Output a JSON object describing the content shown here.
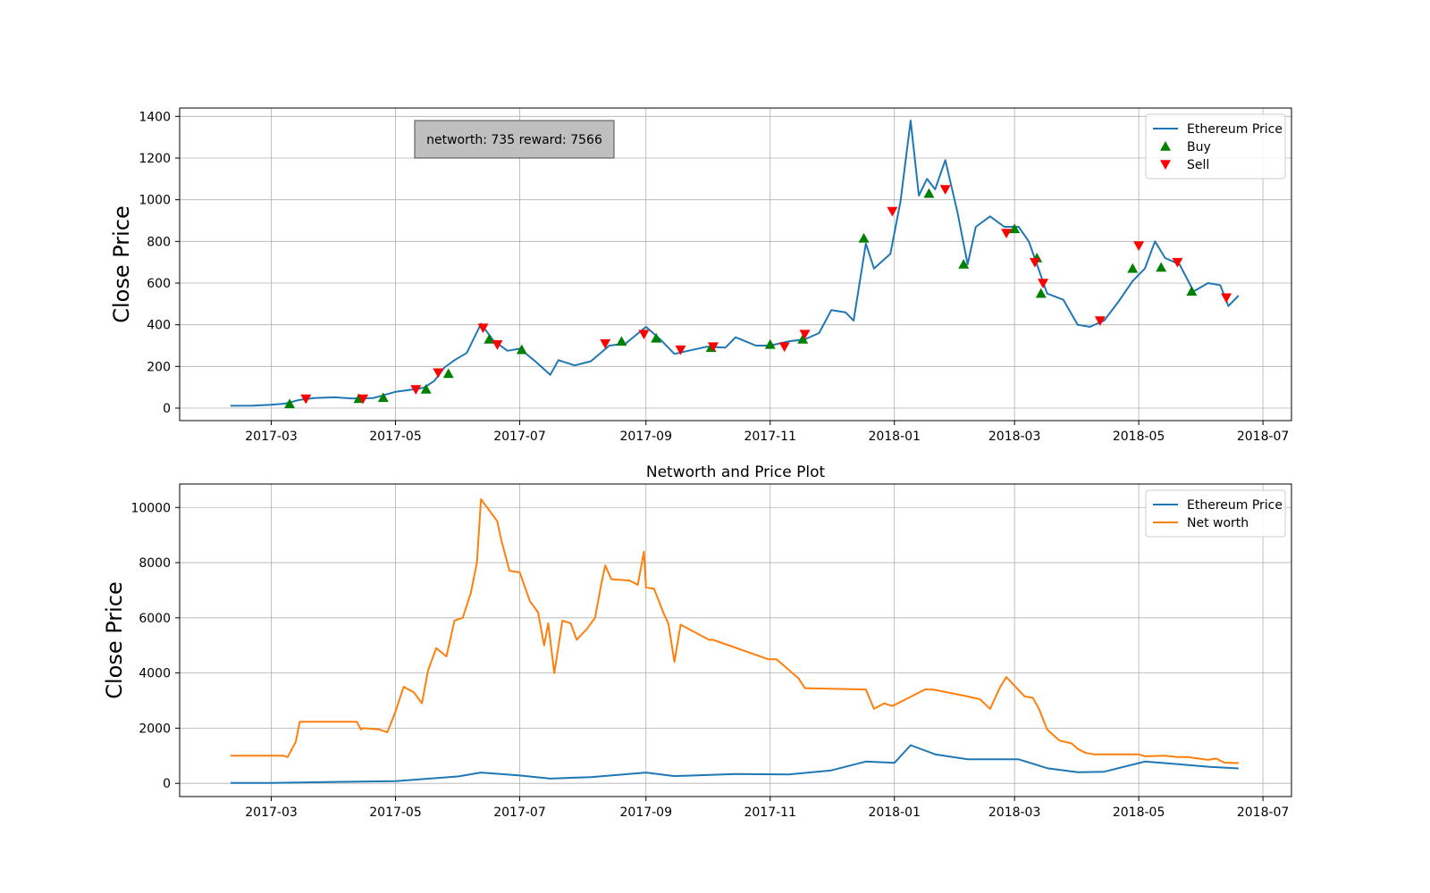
{
  "colors": {
    "price": "#1f77b4",
    "networth": "#ff7f0e",
    "buy": "#008000",
    "sell": "#ff0000",
    "grid": "#b0b0b0",
    "annotation_bg": "#bfbfbf"
  },
  "chart_data": [
    {
      "type": "line",
      "title": "",
      "xlabel": "",
      "ylabel": "Close Price",
      "xlim": [
        "2017-01-15",
        "2018-07-15"
      ],
      "ylim": [
        -60,
        1440
      ],
      "x_ticks": [
        "2017-03",
        "2017-05",
        "2017-07",
        "2017-09",
        "2017-11",
        "2018-01",
        "2018-03",
        "2018-05",
        "2018-07"
      ],
      "y_ticks": [
        "0",
        "200",
        "400",
        "600",
        "800",
        "1000",
        "1200",
        "1400"
      ],
      "grid": true,
      "legend_position": "top-right",
      "annotation": "networth: 735 reward: 7566",
      "legend": [
        {
          "label": "Ethereum Price",
          "kind": "line"
        },
        {
          "label": "Buy",
          "kind": "triangle-up"
        },
        {
          "label": "Sell",
          "kind": "triangle-down"
        }
      ],
      "series": [
        {
          "name": "Ethereum Price",
          "x": [
            "2017-02-09",
            "2017-02-20",
            "2017-03-01",
            "2017-03-08",
            "2017-03-15",
            "2017-03-22",
            "2017-04-01",
            "2017-04-10",
            "2017-04-20",
            "2017-05-01",
            "2017-05-10",
            "2017-05-15",
            "2017-05-20",
            "2017-05-25",
            "2017-05-30",
            "2017-06-05",
            "2017-06-12",
            "2017-06-18",
            "2017-06-25",
            "2017-07-01",
            "2017-07-08",
            "2017-07-16",
            "2017-07-20",
            "2017-07-28",
            "2017-08-05",
            "2017-08-14",
            "2017-08-22",
            "2017-09-01",
            "2017-09-08",
            "2017-09-15",
            "2017-09-24",
            "2017-10-01",
            "2017-10-10",
            "2017-10-15",
            "2017-10-25",
            "2017-11-01",
            "2017-11-10",
            "2017-11-18",
            "2017-11-25",
            "2017-12-01",
            "2017-12-08",
            "2017-12-12",
            "2017-12-18",
            "2017-12-22",
            "2017-12-30",
            "2018-01-04",
            "2018-01-09",
            "2018-01-13",
            "2018-01-17",
            "2018-01-21",
            "2018-01-26",
            "2018-02-01",
            "2018-02-06",
            "2018-02-10",
            "2018-02-17",
            "2018-02-24",
            "2018-03-03",
            "2018-03-08",
            "2018-03-12",
            "2018-03-17",
            "2018-03-25",
            "2018-04-01",
            "2018-04-07",
            "2018-04-14",
            "2018-04-21",
            "2018-04-28",
            "2018-05-04",
            "2018-05-09",
            "2018-05-14",
            "2018-05-21",
            "2018-05-28",
            "2018-06-04",
            "2018-06-10",
            "2018-06-14",
            "2018-06-19"
          ],
          "values": [
            11,
            12,
            16,
            22,
            40,
            48,
            52,
            46,
            48,
            78,
            90,
            98,
            130,
            195,
            230,
            265,
            405,
            325,
            275,
            285,
            230,
            160,
            230,
            205,
            225,
            300,
            310,
            390,
            330,
            260,
            280,
            295,
            290,
            340,
            300,
            300,
            320,
            330,
            360,
            470,
            460,
            420,
            790,
            670,
            740,
            990,
            1380,
            1020,
            1100,
            1050,
            1190,
            940,
            690,
            870,
            920,
            870,
            870,
            800,
            690,
            550,
            520,
            400,
            390,
            420,
            510,
            610,
            670,
            800,
            720,
            690,
            560,
            600,
            590,
            490,
            540
          ]
        }
      ],
      "buy_signals": {
        "x": [
          "2017-03-10",
          "2017-04-13",
          "2017-04-25",
          "2017-05-16",
          "2017-05-27",
          "2017-06-16",
          "2017-07-02",
          "2017-08-20",
          "2017-09-06",
          "2017-10-03",
          "2017-11-01",
          "2017-11-17",
          "2017-12-17",
          "2018-01-18",
          "2018-02-04",
          "2018-03-01",
          "2018-03-12",
          "2018-03-14",
          "2018-04-28",
          "2018-05-12",
          "2018-05-27"
        ],
        "values": [
          20,
          45,
          50,
          90,
          165,
          330,
          280,
          320,
          335,
          290,
          305,
          330,
          815,
          1030,
          690,
          860,
          720,
          550,
          670,
          675,
          560
        ]
      },
      "sell_signals": {
        "x": [
          "2017-03-18",
          "2017-04-15",
          "2017-05-11",
          "2017-05-22",
          "2017-06-13",
          "2017-06-20",
          "2017-08-12",
          "2017-08-31",
          "2017-09-18",
          "2017-10-04",
          "2017-11-08",
          "2017-11-18",
          "2017-12-31",
          "2018-01-26",
          "2018-02-25",
          "2018-03-11",
          "2018-03-15",
          "2018-04-12",
          "2018-05-01",
          "2018-05-20",
          "2018-06-13"
        ],
        "values": [
          45,
          45,
          90,
          170,
          385,
          305,
          310,
          355,
          280,
          295,
          295,
          355,
          945,
          1050,
          840,
          700,
          600,
          420,
          780,
          700,
          530
        ]
      }
    },
    {
      "type": "line",
      "title": "Networth and Price Plot",
      "xlabel": "",
      "ylabel": "Close Price",
      "xlim": [
        "2017-01-15",
        "2018-07-15"
      ],
      "ylim": [
        -480,
        10850
      ],
      "x_ticks": [
        "2017-03",
        "2017-05",
        "2017-07",
        "2017-09",
        "2017-11",
        "2018-01",
        "2018-03",
        "2018-05",
        "2018-07"
      ],
      "y_ticks": [
        "0",
        "2000",
        "4000",
        "6000",
        "8000",
        "10000"
      ],
      "grid": true,
      "legend_position": "top-right",
      "legend": [
        {
          "label": "Ethereum Price",
          "kind": "line"
        },
        {
          "label": "Net worth",
          "kind": "line"
        }
      ],
      "series": [
        {
          "name": "Ethereum Price",
          "x": [
            "2017-02-09",
            "2017-03-01",
            "2017-04-01",
            "2017-05-01",
            "2017-06-01",
            "2017-06-12",
            "2017-07-01",
            "2017-07-16",
            "2017-08-05",
            "2017-09-01",
            "2017-09-15",
            "2017-10-15",
            "2017-11-10",
            "2017-12-01",
            "2017-12-18",
            "2018-01-01",
            "2018-01-09",
            "2018-01-21",
            "2018-02-06",
            "2018-03-03",
            "2018-03-17",
            "2018-04-01",
            "2018-04-14",
            "2018-05-04",
            "2018-05-21",
            "2018-06-04",
            "2018-06-19"
          ],
          "values": [
            11,
            16,
            52,
            78,
            250,
            390,
            285,
            170,
            225,
            390,
            260,
            340,
            320,
            470,
            790,
            740,
            1380,
            1050,
            870,
            870,
            550,
            400,
            420,
            790,
            690,
            600,
            540
          ]
        },
        {
          "name": "Net worth",
          "x": [
            "2017-02-09",
            "2017-03-07",
            "2017-03-09",
            "2017-03-13",
            "2017-03-15",
            "2017-04-12",
            "2017-04-14",
            "2017-04-15",
            "2017-04-23",
            "2017-04-27",
            "2017-05-01",
            "2017-05-05",
            "2017-05-10",
            "2017-05-14",
            "2017-05-17",
            "2017-05-21",
            "2017-05-26",
            "2017-05-30",
            "2017-06-03",
            "2017-06-07",
            "2017-06-10",
            "2017-06-12",
            "2017-06-20",
            "2017-06-22",
            "2017-06-26",
            "2017-07-01",
            "2017-07-06",
            "2017-07-10",
            "2017-07-13",
            "2017-07-15",
            "2017-07-18",
            "2017-07-22",
            "2017-07-26",
            "2017-07-29",
            "2017-08-03",
            "2017-08-07",
            "2017-08-10",
            "2017-08-12",
            "2017-08-15",
            "2017-08-24",
            "2017-08-28",
            "2017-08-31",
            "2017-09-01",
            "2017-09-05",
            "2017-09-10",
            "2017-09-12",
            "2017-09-15",
            "2017-09-18",
            "2017-10-02",
            "2017-10-04",
            "2017-10-31",
            "2017-11-04",
            "2017-11-08",
            "2017-11-15",
            "2017-11-18",
            "2017-12-18",
            "2017-12-22",
            "2017-12-27",
            "2017-12-31",
            "2018-01-16",
            "2018-01-20",
            "2018-02-06",
            "2018-02-12",
            "2018-02-17",
            "2018-02-22",
            "2018-02-25",
            "2018-03-06",
            "2018-03-10",
            "2018-03-13",
            "2018-03-17",
            "2018-03-23",
            "2018-03-29",
            "2018-04-01",
            "2018-04-05",
            "2018-04-09",
            "2018-04-12",
            "2018-05-01",
            "2018-05-04",
            "2018-05-14",
            "2018-05-20",
            "2018-05-25",
            "2018-06-04",
            "2018-06-08",
            "2018-06-12",
            "2018-06-19"
          ],
          "values": [
            1000,
            1000,
            950,
            1500,
            2230,
            2230,
            1950,
            2000,
            1950,
            1850,
            2600,
            3500,
            3300,
            2900,
            4100,
            4900,
            4600,
            5900,
            6000,
            6900,
            8000,
            10300,
            9500,
            8800,
            7700,
            7650,
            6600,
            6200,
            5000,
            5800,
            4000,
            5900,
            5800,
            5200,
            5600,
            6000,
            7200,
            7900,
            7400,
            7350,
            7200,
            8400,
            7100,
            7050,
            6100,
            5800,
            4400,
            5750,
            5200,
            5200,
            4500,
            4500,
            4250,
            3800,
            3450,
            3400,
            2700,
            2900,
            2800,
            3400,
            3400,
            3150,
            3050,
            2700,
            3500,
            3850,
            3150,
            3100,
            2700,
            1950,
            1550,
            1450,
            1250,
            1100,
            1050,
            1050,
            1050,
            980,
            1000,
            950,
            950,
            850,
            900,
            750,
            735
          ]
        }
      ]
    }
  ]
}
